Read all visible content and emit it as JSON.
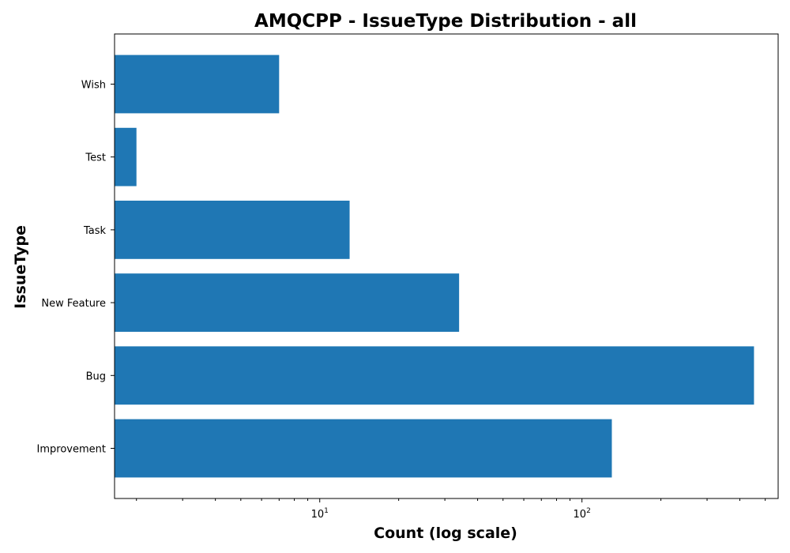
{
  "chart_data": {
    "type": "bar",
    "orientation": "horizontal",
    "title": "AMQCPP - IssueType Distribution - all",
    "xlabel": "Count (log scale)",
    "ylabel": "IssueType",
    "xscale": "log",
    "xlim": [
      1.65,
      560
    ],
    "categories": [
      "Improvement",
      "Bug",
      "New Feature",
      "Task",
      "Test",
      "Wish"
    ],
    "values": [
      130,
      453,
      34,
      13,
      2,
      7
    ],
    "x_major_ticks": [
      {
        "base": "10",
        "exp": "1"
      },
      {
        "base": "10",
        "exp": "2"
      }
    ],
    "bar_color": "#1f77b4",
    "grid": false,
    "legend": "none"
  }
}
